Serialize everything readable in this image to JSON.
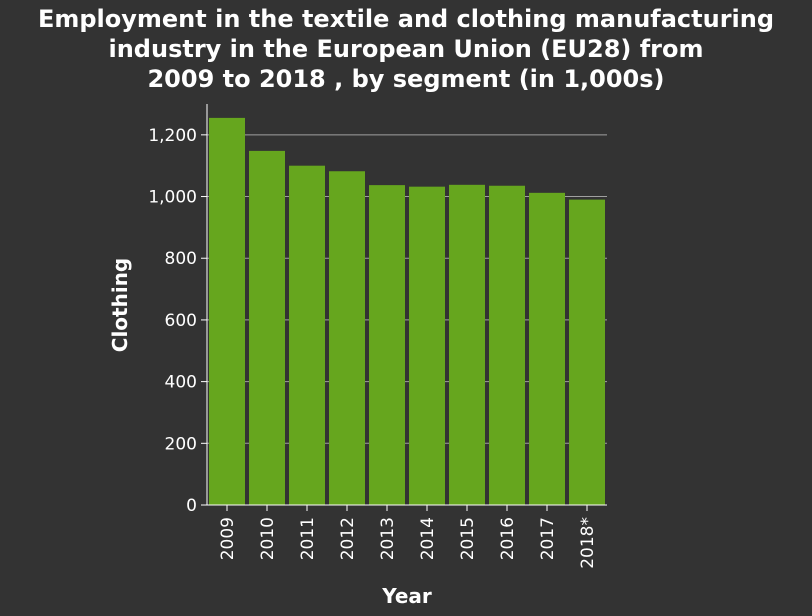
{
  "chart_data": {
    "type": "bar",
    "title": "Employment in the textile and clothing manufacturing industry in the European Union (EU28) from 2009 to 2018 , by segment (in 1,000s)",
    "title_lines": [
      "Employment in the textile and clothing manufacturing",
      "industry in the European Union (EU28) from",
      "2009 to 2018 , by segment (in 1,000s)"
    ],
    "xlabel": "Year",
    "ylabel": "Clothing",
    "categories": [
      "2009",
      "2010",
      "2011",
      "2012",
      "2013",
      "2014",
      "2015",
      "2016",
      "2017",
      "2018*"
    ],
    "values": [
      1255,
      1148,
      1100,
      1082,
      1037,
      1032,
      1038,
      1035,
      1012,
      990
    ],
    "ylim": [
      0,
      1300
    ],
    "yticks": [
      0,
      200,
      400,
      600,
      800,
      1000,
      1200
    ],
    "ytick_labels": [
      "0",
      "200",
      "400",
      "600",
      "800",
      "1,000",
      "1,200"
    ],
    "grid": "horizontal",
    "legend": "none",
    "colors": {
      "bar": "#66a61e",
      "background": "#333333",
      "grid": "#a0a0a0",
      "text": "#ffffff"
    }
  }
}
